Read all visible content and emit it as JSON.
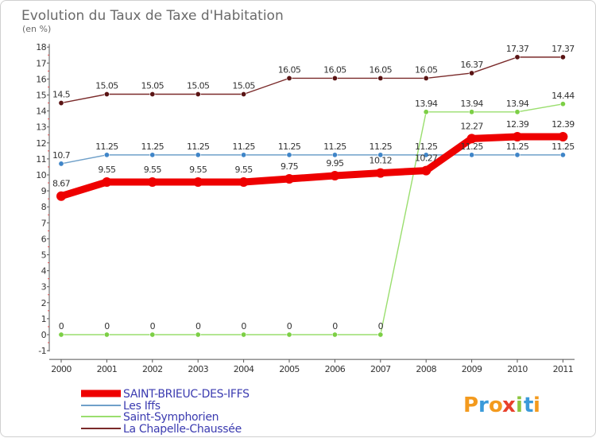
{
  "chart_data": {
    "type": "line",
    "title": "Evolution du Taux de Taxe d'Habitation",
    "subtitle": "(en %)",
    "xlabel": "",
    "ylabel": "",
    "x": [
      "2000",
      "2001",
      "2002",
      "2003",
      "2004",
      "2005",
      "2006",
      "2007",
      "2008",
      "2009",
      "2010",
      "2011"
    ],
    "y_ticks": [
      "-1",
      "0",
      "1",
      "2",
      "3",
      "4",
      "5",
      "6",
      "7",
      "8",
      "9",
      "10",
      "11",
      "12",
      "13",
      "14",
      "15",
      "16",
      "17",
      "18"
    ],
    "ylim": [
      -1,
      18
    ],
    "grid": false,
    "legend_position": "bottom-left",
    "series": [
      {
        "name": "SAINT-BRIEUC-DES-IFFS",
        "color": "#ee0000",
        "values": [
          8.67,
          9.55,
          9.55,
          9.55,
          9.55,
          9.75,
          9.95,
          10.12,
          10.27,
          12.27,
          12.39,
          12.39
        ],
        "labels": [
          "8.67",
          "9.55",
          "9.55",
          "9.55",
          "9.55",
          "9.75",
          "9.95",
          "10.12",
          "10.27",
          "12.27",
          "12.39",
          "12.39"
        ]
      },
      {
        "name": "Les Iffs",
        "color": "#6fa0c9",
        "marker_color": "#3f85c8",
        "values": [
          10.7,
          11.25,
          11.25,
          11.25,
          11.25,
          11.25,
          11.25,
          11.25,
          11.25,
          11.25,
          11.25,
          11.25
        ],
        "labels": [
          "10.7",
          "11.25",
          "11.25",
          "11.25",
          "11.25",
          "11.25",
          "11.25",
          "11.25",
          "11.25",
          "11.25",
          "11.25",
          "11.25"
        ]
      },
      {
        "name": "Saint-Symphorien",
        "color": "#9ade6e",
        "marker_color": "#7ccf45",
        "values": [
          0,
          0,
          0,
          0,
          0,
          0,
          0,
          0,
          13.94,
          13.94,
          13.94,
          14.44
        ],
        "labels": [
          "0",
          "0",
          "0",
          "0",
          "0",
          "0",
          "0",
          "0",
          "13.94",
          "13.94",
          "13.94",
          "14.44"
        ]
      },
      {
        "name": "La Chapelle-Chaussée",
        "color": "#7a2a2a",
        "marker_color": "#5a1414",
        "values": [
          14.5,
          15.05,
          15.05,
          15.05,
          15.05,
          16.05,
          16.05,
          16.05,
          16.05,
          16.37,
          17.37,
          17.37
        ],
        "labels": [
          "14.5",
          "15.05",
          "15.05",
          "15.05",
          "15.05",
          "16.05",
          "16.05",
          "16.05",
          "16.05",
          "16.37",
          "17.37",
          "17.37"
        ]
      }
    ]
  },
  "logo": {
    "letters": [
      "P",
      "r",
      "o",
      "x",
      "i",
      "t",
      "i"
    ],
    "colors": [
      "#f39a1e",
      "#3b9ad9",
      "#f39a1e",
      "#e8412c",
      "#8dc63f",
      "#3b9ad9",
      "#f39a1e"
    ]
  }
}
